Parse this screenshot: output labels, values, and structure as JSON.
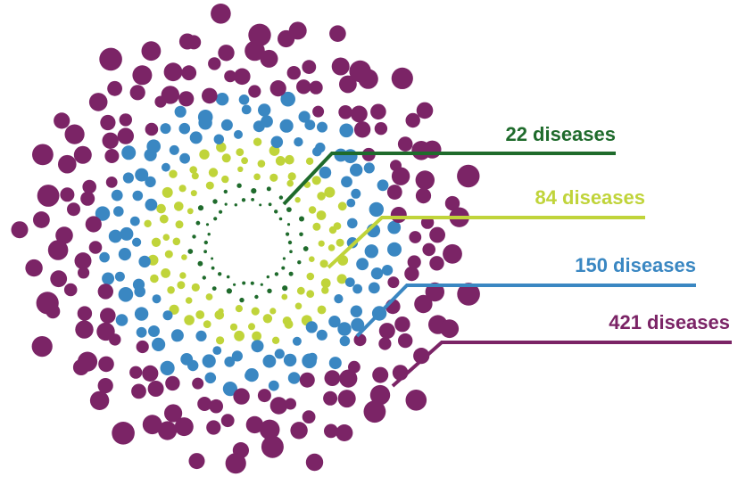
{
  "rings": [
    {
      "name": "ring-1",
      "label": "22 diseases",
      "count": 22,
      "color": "#1f6b2c"
    },
    {
      "name": "ring-2",
      "label": "84 diseases",
      "count": 84,
      "color": "#c0d43a"
    },
    {
      "name": "ring-3",
      "label": "150 diseases",
      "count": 150,
      "color": "#3a87c2"
    },
    {
      "name": "ring-4",
      "label": "421 diseases",
      "count": 421,
      "color": "#7b2466"
    }
  ]
}
